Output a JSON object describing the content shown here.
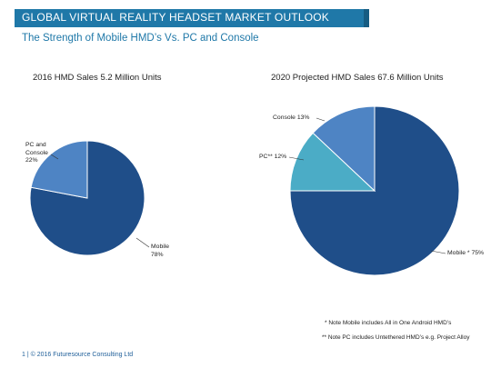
{
  "header": {
    "title": "GLOBAL VIRTUAL REALITY HEADSET MARKET OUTLOOK",
    "subtitle": "The Strength of Mobile HMD’s Vs. PC and Console"
  },
  "colors": {
    "mobile": "#1f4e89",
    "pc_console": "#4e84c4",
    "pc": "#4bacc6",
    "console": "#4e84c4",
    "header_bar": "#1f78a8"
  },
  "chart_data": [
    {
      "type": "pie",
      "title": "2016 HMD Sales 5.2 Million Units",
      "slices": [
        {
          "label": "Mobile",
          "label_text": "Mobile\n78%",
          "value": 78
        },
        {
          "label": "PC and Console",
          "label_text": "PC and\nConsole\n22%",
          "value": 22
        }
      ]
    },
    {
      "type": "pie",
      "title": "2020 Projected HMD Sales 67.6 Million Units",
      "slices": [
        {
          "label": "Mobile",
          "label_text": "Mobile * 75%",
          "value": 75
        },
        {
          "label": "PC",
          "label_text": "PC** 12%",
          "value": 12
        },
        {
          "label": "Console",
          "label_text": "Console 13%",
          "value": 13
        }
      ]
    }
  ],
  "notes": [
    "* Note Mobile includes All in One Android HMD’s",
    "** Note PC includes Untethered HMD’s e.g. Project Alloy"
  ],
  "footer": "1  |  © 2016 Futuresource Consulting Ltd"
}
